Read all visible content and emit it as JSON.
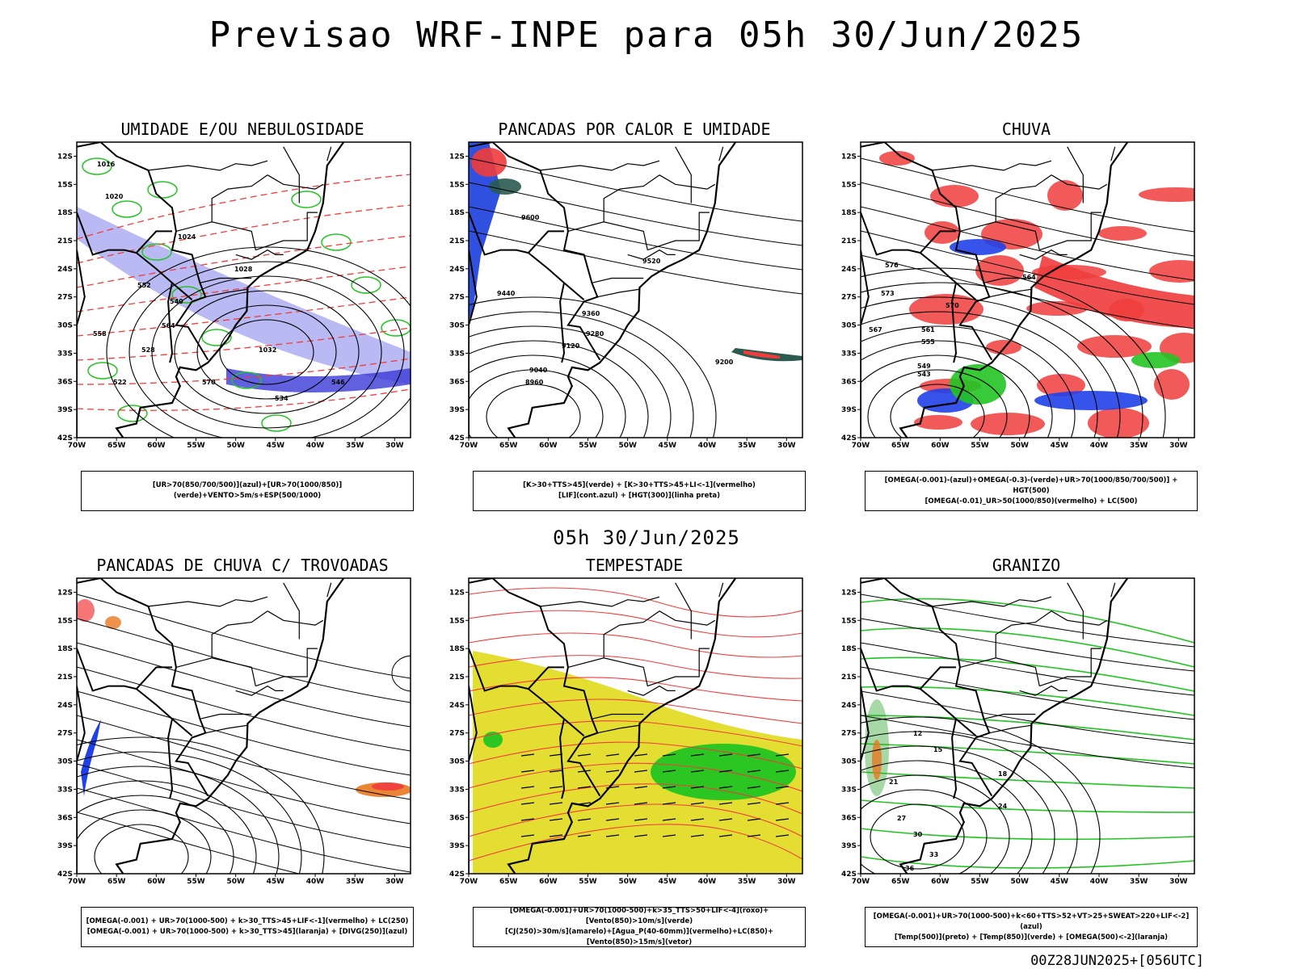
{
  "title": "Previsao WRF-INPE  para 05h 30/Jun/2025",
  "mid_date": "05h 30/Jun/2025",
  "footer": "00Z28JUN2025+[056UTC]",
  "axes": {
    "lat_labels": [
      "12S",
      "15S",
      "18S",
      "21S",
      "24S",
      "27S",
      "30S",
      "33S",
      "36S",
      "39S",
      "42S"
    ],
    "lon_labels": [
      "70W",
      "65W",
      "60W",
      "55W",
      "50W",
      "45W",
      "40W",
      "35W",
      "30W"
    ]
  },
  "panels": [
    {
      "title": "UMIDADE E/OU NEBULOSIDADE",
      "legend": [
        "[UR>70(850/700/500)](azul)+[UR>70(1000/850)](verde)+VENTO>5m/s+ESP(500/1000)"
      ],
      "contour_labels": [
        "1016",
        "1020",
        "1024",
        "1028",
        "1032",
        "546",
        "552",
        "558",
        "564",
        "570",
        "534",
        "528",
        "522",
        "540"
      ]
    },
    {
      "title": "PANCADAS POR CALOR E UMIDADE",
      "legend": [
        "[K>30+TTS>45](verde) + [K>30+TTS>45+LI<-1](vermelho)",
        "[LIF](cont.azul) + [HGT(300)](linha preta)"
      ],
      "contour_labels": [
        "9600",
        "9520",
        "9440",
        "9360",
        "9280",
        "9200",
        "9120",
        "9040",
        "8960"
      ]
    },
    {
      "title": "CHUVA",
      "legend": [
        "[OMEGA(-0.001)-(azul)+OMEGA(-0.3)-(verde)+UR>70(1000/850/700/500)] + HGT(500)",
        "[OMEGA(-0.01)_UR>50(1000/850)(vermelho) + LC(500)"
      ],
      "contour_labels": [
        "570",
        "561",
        "555",
        "549",
        "543",
        "564",
        "576",
        "573",
        "567"
      ]
    },
    {
      "title": "PANCADAS DE CHUVA C/ TROVOADAS",
      "legend": [
        "[OMEGA(-0.001) + UR>70(1000-500) + k>30_TTS>45+LIF<-1](vermelho) + LC(250)",
        "[OMEGA(-0.001) + UR>70(1000-500) + k>30_TTS>45](laranja) + [DIVG(250)](azul)"
      ],
      "contour_labels": []
    },
    {
      "title": "TEMPESTADE",
      "legend": [
        "[OMEGA(-0.001)+UR>70(1000-500)+k>35_TTS>50+LIF<-4](roxo)+[Vento(850)>10m/s](verde)",
        "[CJ(250)>30m/s](amarelo)+[Agua_P(40-60mm)](vermelho)+LC(850)+[Vento(850)>15m/s](vetor)"
      ],
      "contour_labels": []
    },
    {
      "title": "GRANIZO",
      "legend": [
        "[OMEGA(-0.001)+UR>70(1000-500)+k<60+TTS>52+VT>25+SWEAT>220+LIF<-2](azul)",
        "[Temp(500)](preto) + [Temp(850)](verde) + [OMEGA(500)<-2](laranja)"
      ],
      "contour_labels": [
        "12",
        "15",
        "18",
        "21",
        "24",
        "27",
        "30",
        "33",
        "36"
      ]
    }
  ]
}
